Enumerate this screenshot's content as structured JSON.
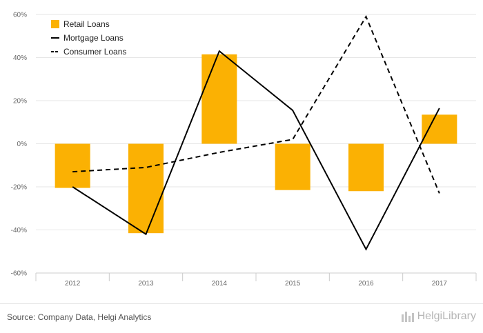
{
  "chart_data": {
    "type": "bar",
    "categories": [
      "2012",
      "2013",
      "2014",
      "2015",
      "2016",
      "2017"
    ],
    "series": [
      {
        "name": "Retail Loans",
        "kind": "bar",
        "values": [
          -20.5,
          -41.5,
          41.5,
          -21.5,
          -22.0,
          13.5
        ]
      },
      {
        "name": "Mortgage Loans",
        "kind": "line",
        "style": "solid",
        "values": [
          -20.0,
          -42.0,
          43.0,
          15.5,
          -49.0,
          16.5
        ]
      },
      {
        "name": "Consumer Loans",
        "kind": "line",
        "style": "dashed",
        "values": [
          -13.0,
          -11.0,
          -4.0,
          2.0,
          59.0,
          -23.0
        ]
      }
    ],
    "ylim": [
      -60,
      60
    ],
    "yticks": [
      60,
      40,
      20,
      0,
      -20,
      -40,
      -60
    ],
    "ytick_labels": [
      "60%",
      "40%",
      "20%",
      "0%",
      "-20%",
      "-40%",
      "-60%"
    ],
    "title": "",
    "xlabel": "",
    "ylabel": "",
    "legend_position": "top-left",
    "grid": true
  },
  "colors": {
    "bar": "#FBB103",
    "line": "#000000",
    "grid": "#e6e6e6"
  },
  "footer": {
    "source": "Source: Company Data, Helgi Analytics",
    "brand": "HelgiLibrary",
    "brand_icon": "helgi-logo-icon"
  }
}
